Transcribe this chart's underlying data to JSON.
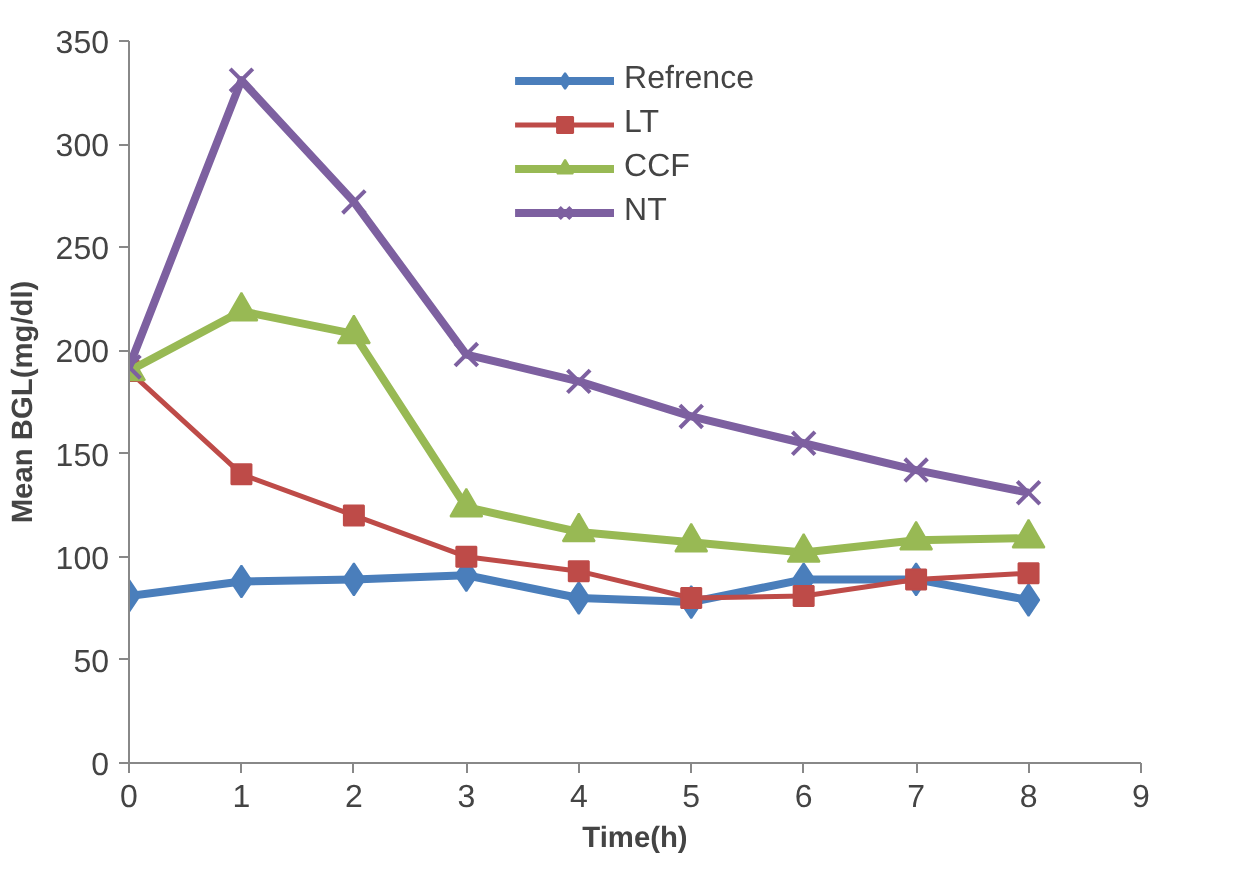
{
  "chart_data": {
    "type": "line",
    "xlabel": "Time(h)",
    "ylabel": "Mean BGL(mg/dl)",
    "x": [
      0,
      1,
      2,
      3,
      4,
      5,
      6,
      7,
      8
    ],
    "series": [
      {
        "name": "Refrence",
        "color": "#4a7ebb",
        "marker": "diamond",
        "values": [
          81,
          88,
          89,
          91,
          80,
          78,
          89,
          89,
          79
        ]
      },
      {
        "name": "LT",
        "color": "#be4b48",
        "marker": "square",
        "values": [
          190,
          140,
          120,
          100,
          93,
          80,
          81,
          89,
          92
        ]
      },
      {
        "name": "CCF",
        "color": "#98b954",
        "marker": "triangle",
        "values": [
          190,
          219,
          208,
          124,
          112,
          107,
          102,
          108,
          109
        ]
      },
      {
        "name": "NT",
        "color": "#7d60a0",
        "marker": "cross",
        "values": [
          192,
          331,
          272,
          198,
          185,
          168,
          155,
          142,
          131
        ]
      }
    ],
    "xlim": [
      0,
      9
    ],
    "xticks": [
      0,
      1,
      2,
      3,
      4,
      5,
      6,
      7,
      8,
      9
    ],
    "ylim": [
      0,
      350
    ],
    "yticks": [
      0,
      50,
      100,
      150,
      200,
      250,
      300,
      350
    ],
    "grid": false,
    "legend": "top",
    "line_style": "solid"
  }
}
